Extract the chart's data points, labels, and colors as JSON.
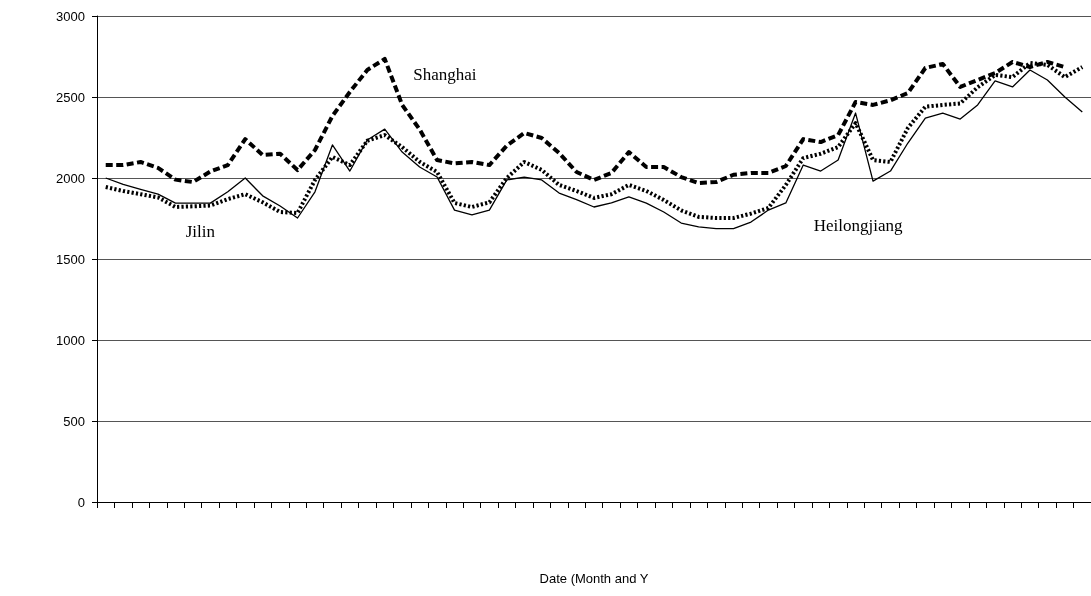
{
  "chart_data": {
    "type": "line",
    "xlabel": "Date (Month and Y",
    "categories": [
      null,
      null,
      null,
      null,
      null,
      null,
      null,
      null,
      null,
      null,
      null,
      null,
      null,
      null,
      null,
      null,
      null,
      null,
      null,
      null,
      null,
      null,
      null,
      null,
      null,
      null,
      null,
      null,
      null,
      null,
      null,
      null,
      null,
      null,
      null,
      null,
      null,
      null,
      null,
      null,
      null,
      null,
      null,
      null,
      null,
      null,
      null,
      null,
      null,
      null,
      null,
      null,
      null,
      null,
      null,
      null,
      null
    ],
    "ylim": [
      0,
      3000
    ],
    "yticks": [
      0,
      500,
      1000,
      1500,
      2000,
      2500,
      3000
    ],
    "grid": "y",
    "legend": false,
    "marker": "none",
    "series": [
      {
        "name": "Shanghai",
        "color": "#000000",
        "line_style": "dashed",
        "values": [
          2080,
          2080,
          2099,
          2062,
          1990,
          1975,
          2040,
          2080,
          2240,
          2142,
          2150,
          2049,
          2173,
          2383,
          2531,
          2667,
          2735,
          2451,
          2300,
          2111,
          2090,
          2099,
          2080,
          2200,
          2278,
          2247,
          2154,
          2037,
          1988,
          2031,
          2160,
          2068,
          2068,
          2006,
          1969,
          1975,
          2020,
          2031,
          2031,
          2074,
          2240,
          2222,
          2265,
          2469,
          2451,
          2480,
          2525,
          2679,
          2704,
          2562,
          2605,
          2648,
          2716,
          2685,
          2716,
          2685,
          null
        ]
      },
      {
        "name": "Jilin",
        "color": "#000000",
        "line_style": "dotted",
        "values": [
          1944,
          1920,
          1900,
          1880,
          1821,
          1825,
          1830,
          1870,
          1900,
          1850,
          1790,
          1784,
          1988,
          2130,
          2080,
          2230,
          2265,
          2191,
          2100,
          2037,
          1846,
          1821,
          1850,
          2000,
          2099,
          2050,
          1957,
          1920,
          1877,
          1900,
          1957,
          1920,
          1864,
          1800,
          1760,
          1753,
          1753,
          1780,
          1815,
          1957,
          2123,
          2150,
          2191,
          2339,
          2111,
          2099,
          2309,
          2440,
          2451,
          2460,
          2560,
          2636,
          2623,
          2710,
          2698,
          2623,
          2685
        ]
      },
      {
        "name": "Heilongjiang",
        "color": "#000000",
        "line_style": "solid",
        "values": [
          2000,
          1960,
          1930,
          1900,
          1845,
          1845,
          1845,
          1915,
          2000,
          1890,
          1827,
          1753,
          1915,
          2204,
          2043,
          2235,
          2302,
          2160,
          2068,
          2006,
          1802,
          1772,
          1802,
          1988,
          2006,
          1988,
          1907,
          1867,
          1821,
          1846,
          1883,
          1845,
          1790,
          1722,
          1698,
          1688,
          1688,
          1728,
          1802,
          1846,
          2080,
          2043,
          2111,
          2401,
          1981,
          2043,
          2216,
          2370,
          2401,
          2364,
          2451,
          2599,
          2562,
          2667,
          2605,
          2500,
          2407
        ]
      }
    ]
  }
}
